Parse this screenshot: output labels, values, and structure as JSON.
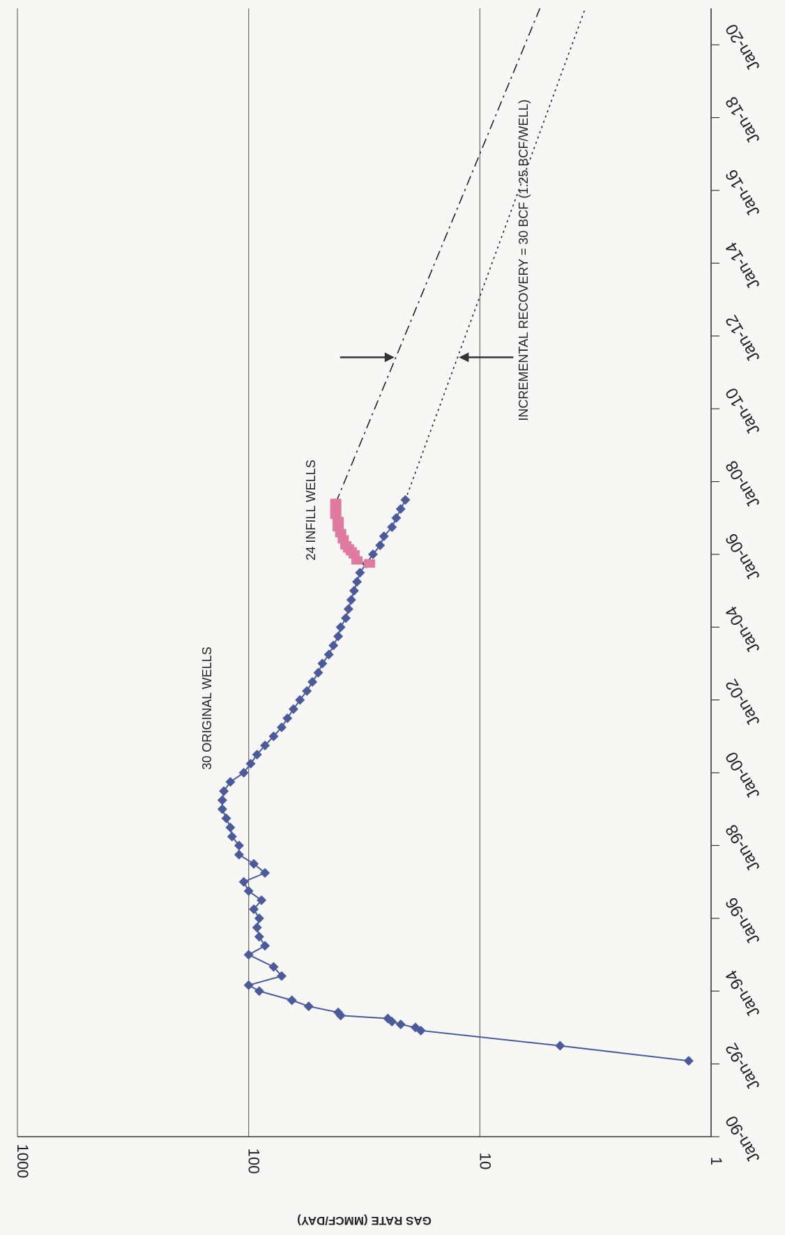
{
  "chart_data": {
    "type": "scatter",
    "title": "",
    "ylabel": "GAS RATE (MMCF/DAY)",
    "xlabel": "",
    "y_scale": "log",
    "ylim": [
      1,
      1000
    ],
    "xlim": [
      "1990-01-01",
      "2021-01-01"
    ],
    "grid": "horizontal gridlines at 10, 100, 1000",
    "y_ticks": [
      "1",
      "10",
      "100",
      "1000"
    ],
    "x_ticks": [
      "Jan-90",
      "Jan-92",
      "Jan-94",
      "Jan-96",
      "Jan-98",
      "Jan-00",
      "Jan-02",
      "Jan-04",
      "Jan-06",
      "Jan-08",
      "Jan-10",
      "Jan-12",
      "Jan-14",
      "Jan-16",
      "Jan-18",
      "Jan-20"
    ],
    "colors": {
      "original": "#4a5a9a",
      "infill": "#e07aa0",
      "forecast": "#222222",
      "arrow": "#333333",
      "grid": "#666666"
    },
    "series": [
      {
        "name": "30 ORIGINAL WELLS",
        "marker": "diamond",
        "color": "#4a5a9a",
        "points": [
          [
            "1992-02-01",
            1.25
          ],
          [
            "1992-07-01",
            4.5
          ],
          [
            "1992-12-01",
            18
          ],
          [
            "1993-01-01",
            19
          ],
          [
            "1993-02-01",
            22
          ],
          [
            "1993-03-01",
            24
          ],
          [
            "1993-04-01",
            25
          ],
          [
            "1993-05-01",
            40
          ],
          [
            "1993-06-01",
            41
          ],
          [
            "1993-08-01",
            55
          ],
          [
            "1993-10-01",
            65
          ],
          [
            "1994-01-01",
            90
          ],
          [
            "1994-03-01",
            100
          ],
          [
            "1994-06-01",
            72
          ],
          [
            "1994-09-01",
            78
          ],
          [
            "1995-01-01",
            100
          ],
          [
            "1995-04-01",
            85
          ],
          [
            "1995-07-01",
            90
          ],
          [
            "1995-10-01",
            92
          ],
          [
            "1996-01-01",
            90
          ],
          [
            "1996-04-01",
            95
          ],
          [
            "1996-07-01",
            88
          ],
          [
            "1996-10-01",
            100
          ],
          [
            "1997-01-01",
            105
          ],
          [
            "1997-04-01",
            85
          ],
          [
            "1997-07-01",
            95
          ],
          [
            "1997-10-01",
            110
          ],
          [
            "1998-01-01",
            110
          ],
          [
            "1998-04-01",
            118
          ],
          [
            "1998-07-01",
            120
          ],
          [
            "1998-10-01",
            125
          ],
          [
            "1999-01-01",
            130
          ],
          [
            "1999-04-01",
            130
          ],
          [
            "1999-07-01",
            128
          ],
          [
            "1999-10-01",
            120
          ],
          [
            "2000-01-01",
            105
          ],
          [
            "2000-04-01",
            98
          ],
          [
            "2000-07-01",
            92
          ],
          [
            "2000-10-01",
            85
          ],
          [
            "2001-01-01",
            78
          ],
          [
            "2001-04-01",
            72
          ],
          [
            "2001-07-01",
            68
          ],
          [
            "2001-10-01",
            64
          ],
          [
            "2002-01-01",
            60
          ],
          [
            "2002-04-01",
            56
          ],
          [
            "2002-07-01",
            53
          ],
          [
            "2002-10-01",
            50
          ],
          [
            "2003-01-01",
            48
          ],
          [
            "2003-04-01",
            45
          ],
          [
            "2003-07-01",
            43
          ],
          [
            "2003-10-01",
            41
          ],
          [
            "2004-01-01",
            40
          ],
          [
            "2004-04-01",
            38
          ],
          [
            "2004-07-01",
            37
          ],
          [
            "2004-10-01",
            36
          ],
          [
            "2005-01-01",
            35
          ],
          [
            "2005-04-01",
            34
          ],
          [
            "2005-07-01",
            33
          ],
          [
            "2005-10-01",
            31
          ],
          [
            "2006-01-01",
            29
          ],
          [
            "2006-04-01",
            27
          ],
          [
            "2006-07-01",
            26
          ],
          [
            "2006-10-01",
            24
          ],
          [
            "2007-01-01",
            23
          ],
          [
            "2007-04-01",
            22
          ],
          [
            "2007-07-01",
            21
          ]
        ]
      },
      {
        "name": "24 INFILL WELLS",
        "marker": "square",
        "color": "#e07aa0",
        "points": [
          [
            "2005-10-01",
            30
          ],
          [
            "2005-11-01",
            34
          ],
          [
            "2006-01-01",
            35
          ],
          [
            "2006-02-01",
            36
          ],
          [
            "2006-03-01",
            37
          ],
          [
            "2006-04-01",
            38
          ],
          [
            "2006-06-01",
            39
          ],
          [
            "2006-08-01",
            40
          ],
          [
            "2006-10-01",
            41
          ],
          [
            "2006-12-01",
            41
          ],
          [
            "2007-02-01",
            42
          ],
          [
            "2007-04-01",
            42
          ],
          [
            "2007-06-01",
            42
          ]
        ]
      }
    ],
    "forecasts": [
      {
        "from": [
          "2007-06-01",
          42
        ],
        "to": [
          "2021-01-01",
          5.5
        ],
        "style": "dash-dot"
      },
      {
        "from": [
          "2007-07-01",
          21
        ],
        "to": [
          "2021-01-01",
          3.5
        ],
        "style": "dotted"
      }
    ],
    "annotations": [
      {
        "text": "30 ORIGINAL WELLS"
      },
      {
        "text": "24 INFILL WELLS"
      },
      {
        "text": "INCREMENTAL RECOVERY = 30 BCF (1.25 BCF/WELL)"
      }
    ]
  }
}
